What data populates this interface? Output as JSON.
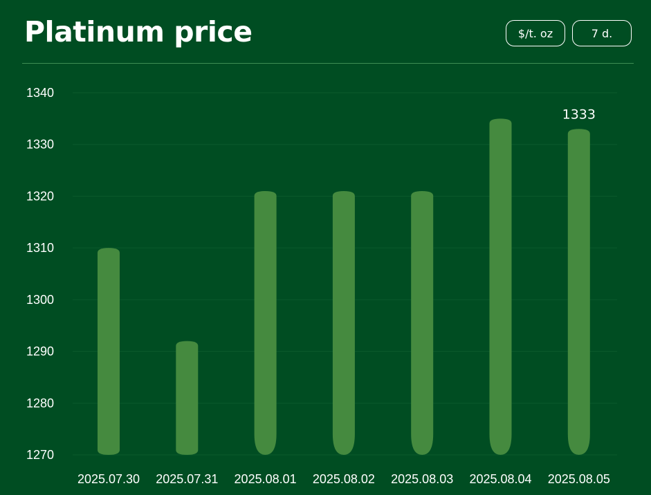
{
  "header": {
    "title": "Platinum price",
    "unit_toggle": "$/t. oz",
    "period_toggle": "7 d."
  },
  "colors": {
    "background": "#004d22",
    "bar": "#458a3f",
    "grid": "#0b5a2c",
    "divider": "#3f8f55"
  },
  "chart_data": {
    "type": "bar",
    "categories": [
      "2025.07.30",
      "2025.07.31",
      "2025.08.01",
      "2025.08.02",
      "2025.08.03",
      "2025.08.04",
      "2025.08.05"
    ],
    "values": [
      1310,
      1292,
      1321,
      1321,
      1321,
      1335,
      1333
    ],
    "y_ticks": [
      1270,
      1280,
      1290,
      1300,
      1310,
      1320,
      1330,
      1340
    ],
    "ylim": [
      1270,
      1340
    ],
    "grid": true,
    "data_labels": [
      {
        "category": "2025.08.05",
        "text": "1333"
      }
    ]
  }
}
